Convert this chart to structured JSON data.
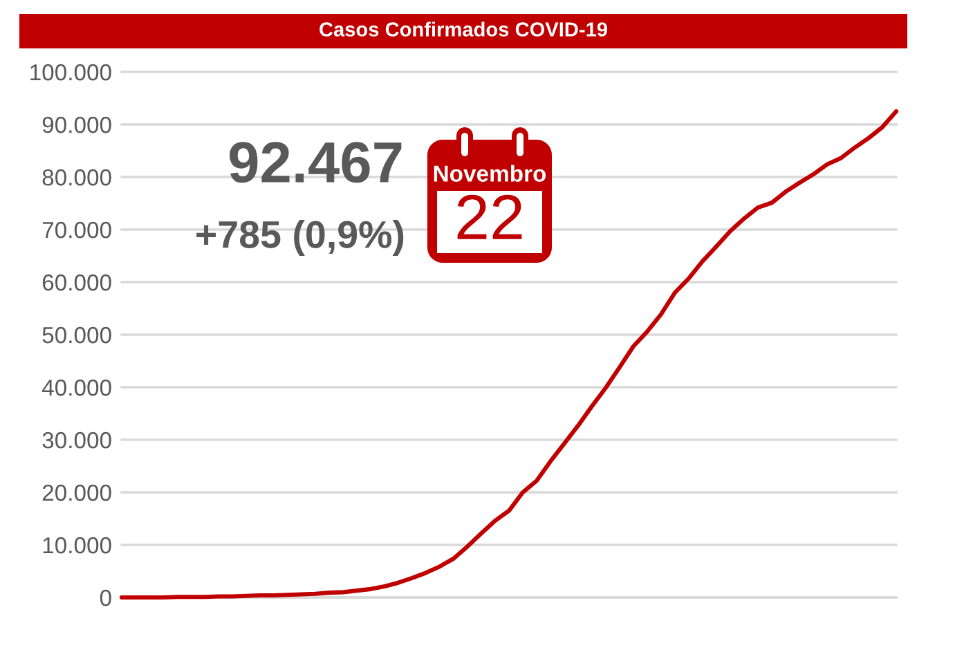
{
  "chart_data": {
    "type": "line",
    "title": "Casos Confirmados COVID-19",
    "categories": [
      null,
      null,
      null,
      null,
      null,
      null,
      null,
      null,
      null,
      null,
      null,
      null,
      null,
      null,
      null,
      null,
      null,
      null,
      null,
      null,
      null,
      null,
      null,
      null,
      null,
      null,
      null,
      null,
      null,
      null,
      null,
      null,
      null,
      null,
      null,
      null,
      null,
      null,
      null,
      null,
      null,
      null,
      null,
      null,
      null,
      null,
      null,
      null,
      null,
      null,
      null,
      null,
      null,
      null,
      null,
      null,
      null
    ],
    "series": [
      {
        "color": "#c00000",
        "values": [
          0,
          0,
          0,
          0,
          100,
          100,
          100,
          200,
          200,
          300,
          400,
          400,
          500,
          600,
          700,
          900,
          1000,
          1300,
          1600,
          2100,
          2800,
          3700,
          4700,
          5900,
          7400,
          9700,
          12200,
          14600,
          16500,
          20000,
          22200,
          25900,
          29300,
          32700,
          36400,
          39900,
          43800,
          47800,
          50600,
          53900,
          58000,
          60700,
          64000,
          66800,
          69700,
          72100,
          74200,
          75100,
          77200,
          78900,
          80500,
          82400,
          83600,
          85600,
          87400,
          89500,
          92500
        ]
      }
    ],
    "ylim": [
      0,
      100000
    ],
    "yticks": [
      0,
      {
        "value": 10000,
        "label": "10.000"
      },
      {
        "value": 20000,
        "label": "20.000"
      },
      {
        "value": 30000,
        "label": "30.000"
      },
      {
        "value": 40000,
        "label": "40.000"
      },
      {
        "value": 50000,
        "label": "50.000"
      },
      {
        "value": 60000,
        "label": "60.000"
      },
      {
        "value": 70000,
        "label": "70.000"
      },
      {
        "value": 80000,
        "label": "80.000"
      },
      {
        "value": 90000,
        "label": "90.000"
      },
      {
        "value": 100000,
        "label": "100.000"
      }
    ],
    "grid": "y",
    "tick_labels": "y",
    "line_style": "solid",
    "annotations": [
      "92.467",
      "+785 (0,9%)",
      "Novembro",
      "22"
    ]
  }
}
